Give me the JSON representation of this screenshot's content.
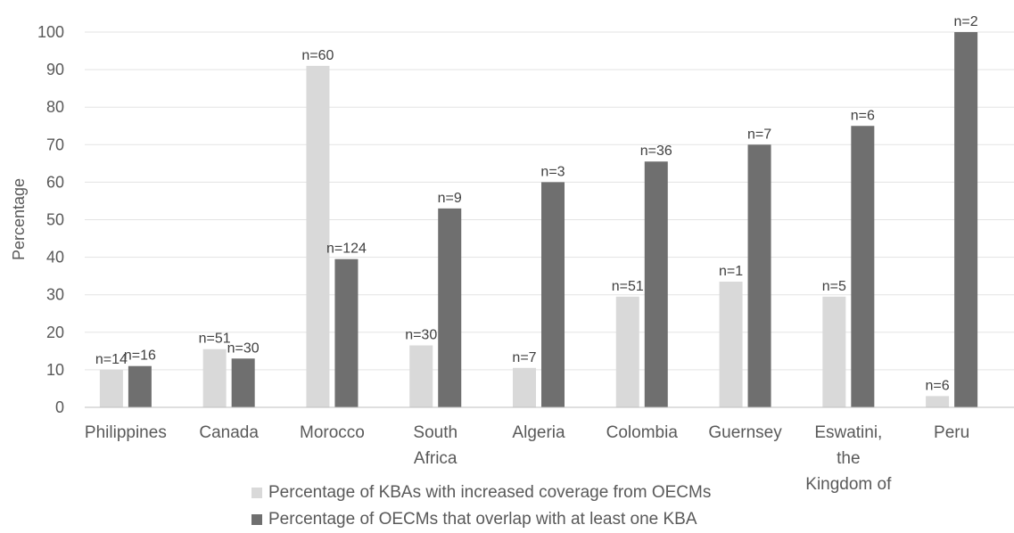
{
  "chart_data": {
    "type": "bar",
    "title": "",
    "xlabel": "",
    "ylabel": "Percentage",
    "ylim": [
      0,
      100
    ],
    "yticks": [
      0,
      10,
      20,
      30,
      40,
      50,
      60,
      70,
      80,
      90,
      100
    ],
    "grid": true,
    "legend_position": "bottom",
    "categories": [
      [
        "Philippines"
      ],
      [
        "Canada"
      ],
      [
        "Morocco"
      ],
      [
        "South",
        "Africa"
      ],
      [
        "Algeria"
      ],
      [
        "Colombia"
      ],
      [
        "Guernsey"
      ],
      [
        "Eswatini,",
        "the",
        "Kingdom of"
      ],
      [
        "Peru"
      ]
    ],
    "series": [
      {
        "name": "Percentage of KBAs with increased coverage from OECMs",
        "color": "#d9d9d9",
        "values": [
          10,
          15.5,
          91,
          16.5,
          10.5,
          29.5,
          33.5,
          29.5,
          3
        ],
        "labels": [
          "n=14",
          "n=51",
          "n=60",
          "n=30",
          "n=7",
          "n=51",
          "n=1",
          "n=5",
          "n=6"
        ]
      },
      {
        "name": "Percentage of OECMs that overlap with at least one KBA",
        "color": "#6f6f6f",
        "values": [
          11,
          13,
          39.5,
          53,
          60,
          65.5,
          70,
          75,
          100
        ],
        "labels": [
          "n=16",
          "n=30",
          "n=124",
          "n=9",
          "n=3",
          "n=36",
          "n=7",
          "n=6",
          "n=2"
        ]
      }
    ]
  }
}
